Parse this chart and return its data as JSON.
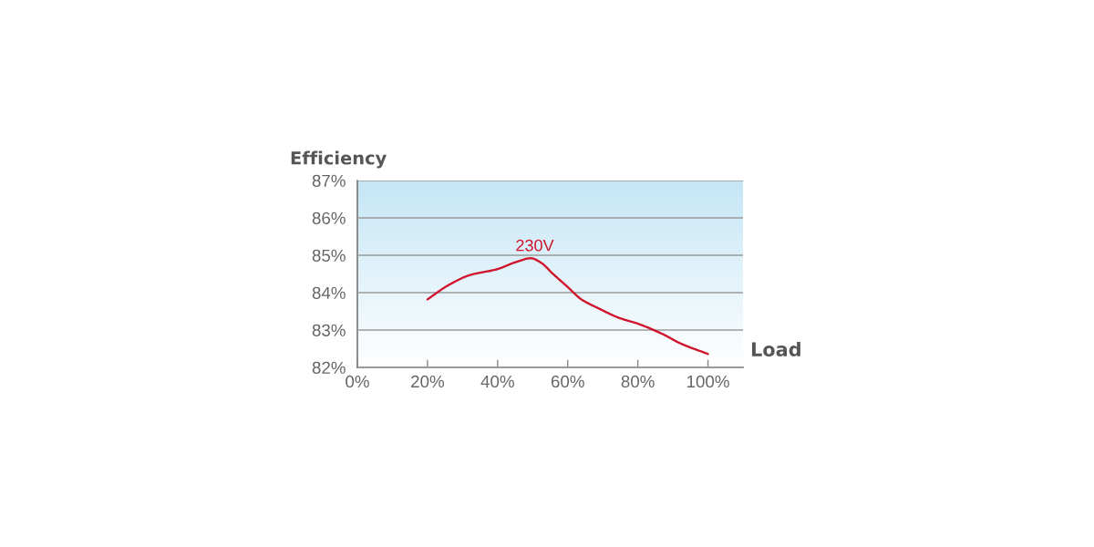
{
  "chart_data": {
    "type": "line",
    "xlabel": "Load",
    "ylabel": "Efficiency",
    "x": [
      20,
      25.8,
      32.1,
      40,
      44.7,
      49.5,
      52.4,
      55.7,
      60,
      63.9,
      68.8,
      74.5,
      80,
      87.1,
      92.2,
      100
    ],
    "series": [
      {
        "name": "230V",
        "color": "#d0142c",
        "values": [
          83.82,
          84.19,
          84.47,
          84.63,
          84.8,
          84.92,
          84.8,
          84.51,
          84.15,
          83.82,
          83.58,
          83.33,
          83.17,
          82.89,
          82.64,
          82.36
        ]
      }
    ],
    "xlim": [
      0,
      110
    ],
    "xticks": [
      {
        "value": 0,
        "label": "0%"
      },
      {
        "value": 20,
        "label": "20%"
      },
      {
        "value": 40,
        "label": "40%"
      },
      {
        "value": 60,
        "label": "60%"
      },
      {
        "value": 80,
        "label": "80%"
      },
      {
        "value": 100,
        "label": "100%"
      }
    ],
    "ylim": [
      82,
      87
    ],
    "yticks": [
      {
        "value": 82,
        "label": "82%"
      },
      {
        "value": 83,
        "label": "83%"
      },
      {
        "value": 84,
        "label": "84%"
      },
      {
        "value": 85,
        "label": "85%"
      },
      {
        "value": 86,
        "label": "86%"
      },
      {
        "value": 87,
        "label": "87%"
      }
    ],
    "grid": "y",
    "marker": "none",
    "line_style": "solid",
    "legend": false
  }
}
